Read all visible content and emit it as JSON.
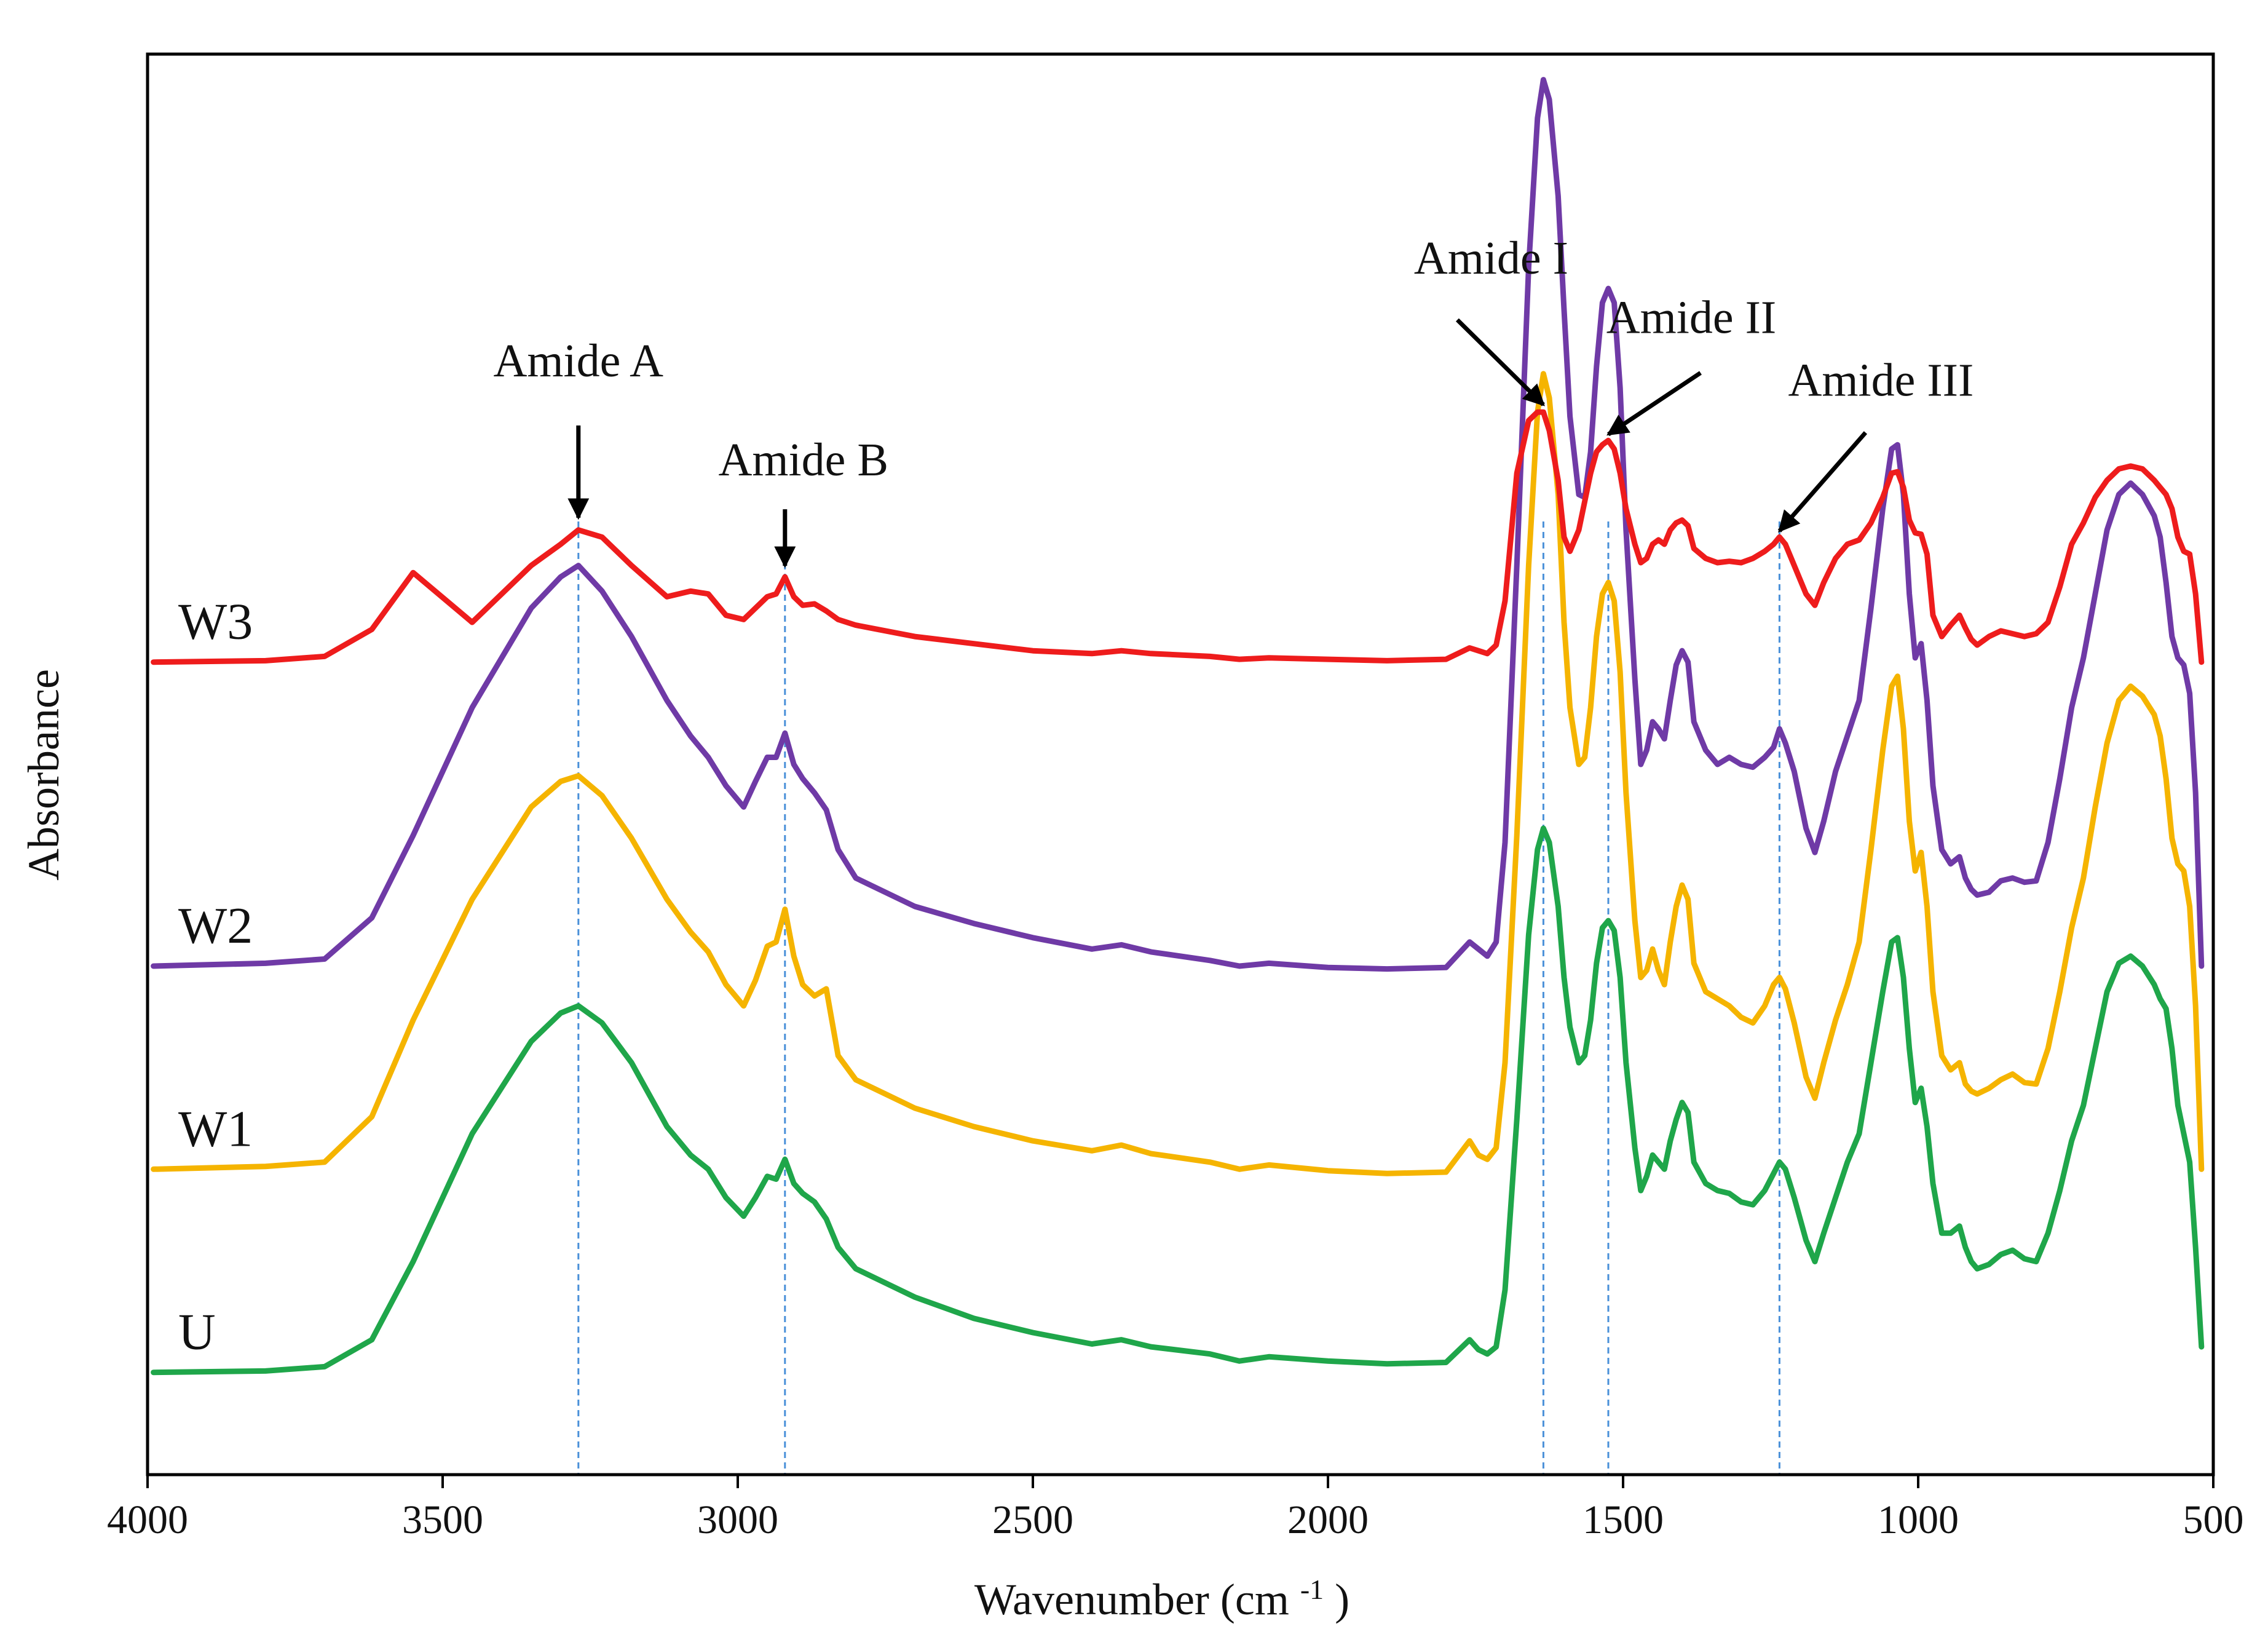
{
  "chart_data": {
    "type": "line",
    "title": "",
    "xlabel": "Wavenumber (cm",
    "xlabel_superscript": "-1",
    "xlabel_suffix": ")",
    "ylabel": "Absorbance",
    "xlim": [
      4000,
      500
    ],
    "x_reversed": true,
    "xticks": [
      4000,
      3500,
      3000,
      2500,
      2000,
      1500,
      1000,
      500
    ],
    "ylim": [
      0,
      1
    ],
    "y_ticks_shown": false,
    "grid": false,
    "colors": {
      "U": "#1fa64a",
      "W1": "#f5b400",
      "W2": "#6f3aa6",
      "W3": "#ee1c1c",
      "reference_line": "#4a90d9",
      "arrow": "#000000"
    },
    "reference_lines": [
      3270,
      2920,
      1635,
      1525,
      1235
    ],
    "annotations": [
      {
        "text": "Amide A",
        "x": 3270
      },
      {
        "text": "Amide B",
        "x": 2920
      },
      {
        "text": "Amide I",
        "x": 1635
      },
      {
        "text": "Amide II",
        "x": 1525
      },
      {
        "text": "Amide III",
        "x": 1235
      }
    ],
    "series": [
      {
        "name": "U",
        "x": [
          3990,
          3800,
          3700,
          3620,
          3550,
          3450,
          3350,
          3300,
          3270,
          3230,
          3180,
          3120,
          3080,
          3050,
          3020,
          2990,
          2970,
          2950,
          2935,
          2920,
          2905,
          2890,
          2870,
          2850,
          2830,
          2800,
          2700,
          2600,
          2500,
          2400,
          2350,
          2300,
          2200,
          2150,
          2100,
          2000,
          1900,
          1800,
          1760,
          1745,
          1730,
          1715,
          1700,
          1680,
          1660,
          1645,
          1635,
          1625,
          1610,
          1600,
          1590,
          1575,
          1565,
          1555,
          1545,
          1535,
          1525,
          1515,
          1505,
          1495,
          1480,
          1470,
          1460,
          1450,
          1440,
          1430,
          1420,
          1410,
          1400,
          1390,
          1380,
          1360,
          1340,
          1320,
          1300,
          1280,
          1260,
          1245,
          1235,
          1225,
          1210,
          1190,
          1175,
          1160,
          1140,
          1120,
          1100,
          1080,
          1060,
          1045,
          1035,
          1025,
          1015,
          1005,
          995,
          985,
          975,
          960,
          945,
          930,
          920,
          910,
          900,
          880,
          860,
          840,
          820,
          800,
          780,
          760,
          740,
          720,
          700,
          680,
          660,
          640,
          620,
          600,
          590,
          580,
          570,
          560,
          550,
          540,
          530,
          520
        ],
        "y": [
          0.072,
          0.073,
          0.076,
          0.095,
          0.15,
          0.24,
          0.305,
          0.325,
          0.33,
          0.318,
          0.29,
          0.245,
          0.225,
          0.215,
          0.195,
          0.182,
          0.195,
          0.21,
          0.208,
          0.222,
          0.205,
          0.198,
          0.192,
          0.18,
          0.16,
          0.145,
          0.125,
          0.11,
          0.1,
          0.092,
          0.095,
          0.09,
          0.085,
          0.08,
          0.083,
          0.08,
          0.078,
          0.079,
          0.095,
          0.088,
          0.085,
          0.09,
          0.13,
          0.25,
          0.38,
          0.44,
          0.455,
          0.445,
          0.4,
          0.35,
          0.315,
          0.29,
          0.295,
          0.32,
          0.36,
          0.385,
          0.39,
          0.383,
          0.35,
          0.29,
          0.23,
          0.2,
          0.21,
          0.225,
          0.22,
          0.215,
          0.235,
          0.25,
          0.262,
          0.255,
          0.22,
          0.205,
          0.2,
          0.198,
          0.192,
          0.19,
          0.2,
          0.212,
          0.22,
          0.215,
          0.195,
          0.165,
          0.15,
          0.17,
          0.195,
          0.22,
          0.24,
          0.29,
          0.34,
          0.375,
          0.378,
          0.35,
          0.3,
          0.262,
          0.272,
          0.245,
          0.205,
          0.17,
          0.17,
          0.175,
          0.16,
          0.15,
          0.145,
          0.148,
          0.155,
          0.158,
          0.152,
          0.15,
          0.17,
          0.2,
          0.235,
          0.26,
          0.3,
          0.34,
          0.36,
          0.365,
          0.358,
          0.345,
          0.335,
          0.328,
          0.3,
          0.26,
          0.24,
          0.22,
          0.16,
          0.09
        ]
      },
      {
        "name": "W1",
        "x": [
          3990,
          3800,
          3700,
          3620,
          3550,
          3450,
          3350,
          3300,
          3270,
          3230,
          3180,
          3120,
          3080,
          3050,
          3020,
          2990,
          2970,
          2950,
          2935,
          2920,
          2905,
          2890,
          2870,
          2850,
          2830,
          2800,
          2700,
          2600,
          2500,
          2400,
          2350,
          2300,
          2200,
          2150,
          2100,
          2000,
          1900,
          1800,
          1760,
          1745,
          1730,
          1715,
          1700,
          1680,
          1660,
          1645,
          1635,
          1625,
          1610,
          1600,
          1590,
          1575,
          1565,
          1555,
          1545,
          1535,
          1525,
          1515,
          1505,
          1495,
          1480,
          1470,
          1460,
          1450,
          1440,
          1430,
          1420,
          1410,
          1400,
          1390,
          1380,
          1360,
          1340,
          1320,
          1300,
          1280,
          1260,
          1245,
          1235,
          1225,
          1210,
          1190,
          1175,
          1160,
          1140,
          1120,
          1100,
          1080,
          1060,
          1045,
          1035,
          1025,
          1015,
          1005,
          995,
          985,
          975,
          960,
          945,
          930,
          920,
          910,
          900,
          880,
          860,
          840,
          820,
          800,
          780,
          760,
          740,
          720,
          700,
          680,
          660,
          640,
          620,
          600,
          590,
          580,
          570,
          560,
          550,
          540,
          530,
          520
        ],
        "y": [
          0.215,
          0.217,
          0.22,
          0.252,
          0.32,
          0.405,
          0.47,
          0.488,
          0.492,
          0.478,
          0.448,
          0.405,
          0.382,
          0.368,
          0.345,
          0.33,
          0.348,
          0.372,
          0.375,
          0.398,
          0.365,
          0.345,
          0.337,
          0.342,
          0.295,
          0.278,
          0.258,
          0.245,
          0.235,
          0.228,
          0.232,
          0.226,
          0.22,
          0.215,
          0.218,
          0.214,
          0.212,
          0.213,
          0.235,
          0.225,
          0.222,
          0.23,
          0.29,
          0.45,
          0.64,
          0.748,
          0.775,
          0.758,
          0.69,
          0.6,
          0.54,
          0.5,
          0.505,
          0.54,
          0.59,
          0.62,
          0.628,
          0.615,
          0.565,
          0.48,
          0.39,
          0.35,
          0.355,
          0.37,
          0.355,
          0.345,
          0.375,
          0.4,
          0.415,
          0.405,
          0.36,
          0.34,
          0.335,
          0.33,
          0.322,
          0.318,
          0.33,
          0.345,
          0.35,
          0.342,
          0.318,
          0.28,
          0.265,
          0.29,
          0.32,
          0.345,
          0.375,
          0.44,
          0.51,
          0.555,
          0.562,
          0.525,
          0.46,
          0.425,
          0.438,
          0.4,
          0.34,
          0.295,
          0.285,
          0.29,
          0.275,
          0.27,
          0.268,
          0.272,
          0.278,
          0.282,
          0.276,
          0.275,
          0.3,
          0.34,
          0.385,
          0.42,
          0.47,
          0.515,
          0.545,
          0.555,
          0.548,
          0.535,
          0.52,
          0.49,
          0.448,
          0.43,
          0.425,
          0.4,
          0.33,
          0.215
        ]
      },
      {
        "name": "W2",
        "x": [
          3990,
          3800,
          3700,
          3620,
          3550,
          3450,
          3350,
          3300,
          3270,
          3230,
          3180,
          3120,
          3080,
          3050,
          3020,
          2990,
          2970,
          2950,
          2935,
          2920,
          2905,
          2890,
          2870,
          2850,
          2830,
          2800,
          2700,
          2600,
          2500,
          2400,
          2350,
          2300,
          2200,
          2150,
          2100,
          2000,
          1900,
          1800,
          1760,
          1745,
          1730,
          1715,
          1700,
          1680,
          1660,
          1645,
          1635,
          1625,
          1610,
          1600,
          1590,
          1575,
          1565,
          1555,
          1545,
          1535,
          1525,
          1515,
          1505,
          1495,
          1480,
          1470,
          1460,
          1450,
          1440,
          1430,
          1420,
          1410,
          1400,
          1390,
          1380,
          1360,
          1340,
          1320,
          1300,
          1280,
          1260,
          1245,
          1235,
          1225,
          1210,
          1190,
          1175,
          1160,
          1140,
          1120,
          1100,
          1080,
          1060,
          1045,
          1035,
          1025,
          1015,
          1005,
          995,
          985,
          975,
          960,
          945,
          930,
          920,
          910,
          900,
          880,
          860,
          840,
          820,
          800,
          780,
          760,
          740,
          720,
          700,
          680,
          660,
          640,
          620,
          600,
          590,
          580,
          570,
          560,
          550,
          540,
          530,
          520
        ],
        "y": [
          0.358,
          0.36,
          0.363,
          0.392,
          0.45,
          0.54,
          0.61,
          0.632,
          0.64,
          0.622,
          0.59,
          0.545,
          0.52,
          0.505,
          0.485,
          0.47,
          0.488,
          0.505,
          0.505,
          0.522,
          0.5,
          0.49,
          0.48,
          0.468,
          0.44,
          0.42,
          0.4,
          0.388,
          0.378,
          0.37,
          0.373,
          0.368,
          0.362,
          0.358,
          0.36,
          0.357,
          0.356,
          0.357,
          0.375,
          0.37,
          0.365,
          0.375,
          0.445,
          0.64,
          0.85,
          0.955,
          0.982,
          0.968,
          0.9,
          0.82,
          0.745,
          0.69,
          0.688,
          0.72,
          0.78,
          0.825,
          0.835,
          0.825,
          0.765,
          0.665,
          0.56,
          0.5,
          0.51,
          0.53,
          0.525,
          0.518,
          0.545,
          0.57,
          0.58,
          0.572,
          0.53,
          0.51,
          0.5,
          0.505,
          0.5,
          0.498,
          0.505,
          0.512,
          0.525,
          0.515,
          0.495,
          0.455,
          0.438,
          0.46,
          0.495,
          0.52,
          0.545,
          0.61,
          0.68,
          0.722,
          0.725,
          0.69,
          0.62,
          0.575,
          0.585,
          0.545,
          0.485,
          0.44,
          0.43,
          0.435,
          0.42,
          0.412,
          0.408,
          0.41,
          0.418,
          0.42,
          0.417,
          0.418,
          0.445,
          0.49,
          0.54,
          0.575,
          0.62,
          0.665,
          0.69,
          0.698,
          0.69,
          0.675,
          0.66,
          0.628,
          0.59,
          0.575,
          0.57,
          0.55,
          0.48,
          0.358
        ]
      },
      {
        "name": "W3",
        "x": [
          3990,
          3800,
          3700,
          3620,
          3550,
          3450,
          3350,
          3300,
          3270,
          3230,
          3180,
          3120,
          3080,
          3050,
          3020,
          2990,
          2970,
          2950,
          2935,
          2920,
          2905,
          2890,
          2870,
          2850,
          2830,
          2800,
          2700,
          2600,
          2500,
          2400,
          2350,
          2300,
          2200,
          2150,
          2100,
          2000,
          1900,
          1800,
          1760,
          1745,
          1730,
          1715,
          1700,
          1680,
          1660,
          1645,
          1635,
          1625,
          1610,
          1600,
          1590,
          1575,
          1565,
          1555,
          1545,
          1535,
          1525,
          1515,
          1505,
          1495,
          1480,
          1470,
          1460,
          1450,
          1440,
          1430,
          1420,
          1410,
          1400,
          1390,
          1380,
          1360,
          1340,
          1320,
          1300,
          1280,
          1260,
          1245,
          1235,
          1225,
          1210,
          1190,
          1175,
          1160,
          1140,
          1120,
          1100,
          1080,
          1060,
          1045,
          1035,
          1025,
          1015,
          1005,
          995,
          985,
          975,
          960,
          945,
          930,
          920,
          910,
          900,
          880,
          860,
          840,
          820,
          800,
          780,
          760,
          740,
          720,
          700,
          680,
          660,
          640,
          620,
          600,
          590,
          580,
          570,
          560,
          550,
          540,
          530,
          520
        ],
        "y": [
          0.572,
          0.573,
          0.576,
          0.595,
          0.635,
          0.6,
          0.64,
          0.655,
          0.665,
          0.66,
          0.64,
          0.618,
          0.622,
          0.62,
          0.605,
          0.602,
          0.61,
          0.618,
          0.62,
          0.632,
          0.618,
          0.612,
          0.613,
          0.608,
          0.602,
          0.598,
          0.59,
          0.585,
          0.58,
          0.578,
          0.58,
          0.578,
          0.576,
          0.574,
          0.575,
          0.574,
          0.573,
          0.574,
          0.582,
          0.58,
          0.578,
          0.584,
          0.615,
          0.705,
          0.742,
          0.748,
          0.748,
          0.735,
          0.7,
          0.66,
          0.65,
          0.665,
          0.685,
          0.705,
          0.72,
          0.725,
          0.728,
          0.722,
          0.705,
          0.68,
          0.655,
          0.642,
          0.645,
          0.655,
          0.658,
          0.655,
          0.665,
          0.67,
          0.672,
          0.668,
          0.652,
          0.645,
          0.642,
          0.643,
          0.642,
          0.645,
          0.65,
          0.655,
          0.66,
          0.655,
          0.64,
          0.62,
          0.612,
          0.628,
          0.645,
          0.655,
          0.658,
          0.67,
          0.688,
          0.705,
          0.706,
          0.695,
          0.672,
          0.663,
          0.662,
          0.648,
          0.605,
          0.59,
          0.598,
          0.605,
          0.596,
          0.588,
          0.584,
          0.59,
          0.594,
          0.592,
          0.59,
          0.592,
          0.6,
          0.625,
          0.655,
          0.67,
          0.688,
          0.7,
          0.708,
          0.71,
          0.708,
          0.7,
          0.695,
          0.69,
          0.68,
          0.66,
          0.65,
          0.648,
          0.62,
          0.572
        ]
      }
    ]
  }
}
